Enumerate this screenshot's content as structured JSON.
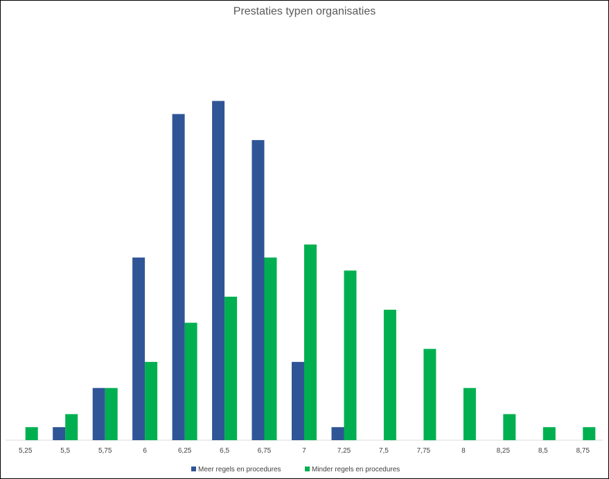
{
  "chart_data": {
    "type": "bar",
    "title": "Prestaties typen organisaties",
    "categories": [
      "5,25",
      "5,5",
      "5,75",
      "6",
      "6,25",
      "6,5",
      "6,75",
      "7",
      "7,25",
      "7,5",
      "7,75",
      "8",
      "8,25",
      "8,5",
      "8,75"
    ],
    "series": [
      {
        "name": "Meer regels en procedures",
        "color": "#2F5597",
        "values": [
          0,
          1,
          4,
          14,
          25,
          26,
          23,
          6,
          1,
          0,
          0,
          0,
          0,
          0,
          0
        ]
      },
      {
        "name": "Minder regels en procedures",
        "color": "#00B050",
        "values": [
          1,
          2,
          4,
          6,
          9,
          11,
          14,
          15,
          13,
          10,
          7,
          4,
          2,
          1,
          1
        ]
      }
    ],
    "xlabel": "",
    "ylabel": "",
    "ylim": [
      0,
      28
    ],
    "grid": false,
    "y_axis_visible": false,
    "legend_position": "bottom"
  }
}
